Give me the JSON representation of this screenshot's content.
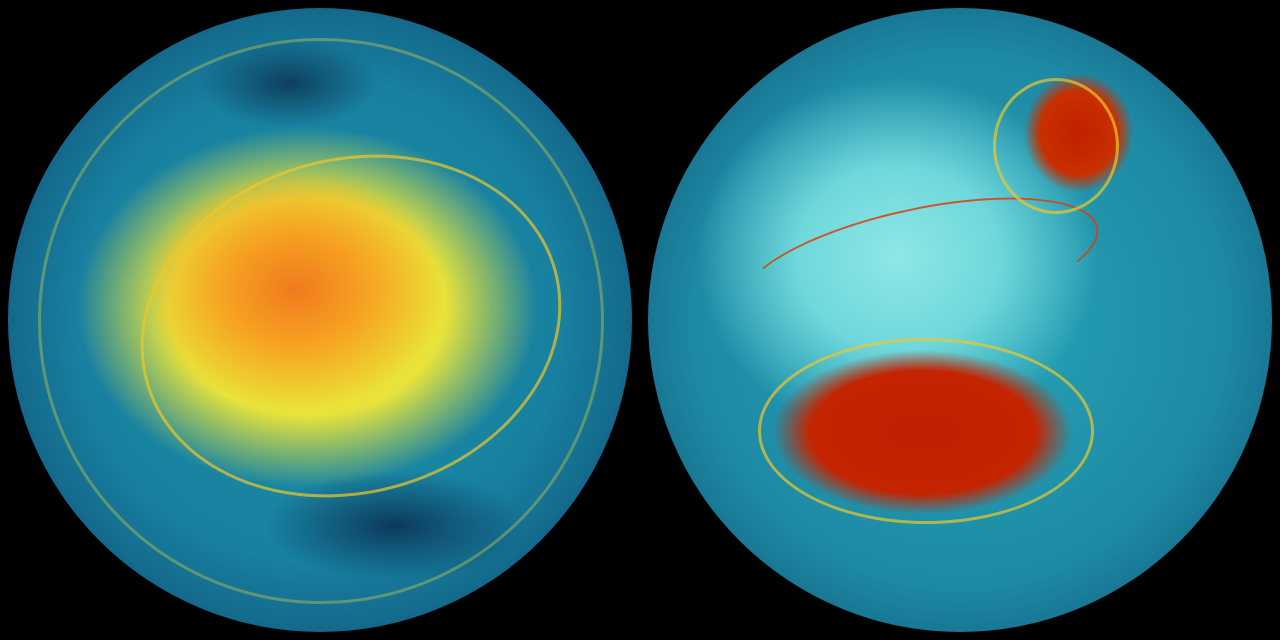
{
  "images": [
    {
      "name": "left-globe",
      "colors": {
        "vortex_core": "#f07a1e",
        "vortex_edge": "#f5d72a",
        "background_flow": "#1b93a8",
        "limb": "#082b45"
      }
    },
    {
      "name": "right-globe",
      "colors": {
        "vortex_core": "#c02000",
        "continents": "#8fe6e6",
        "background_flow": "#28a6b8",
        "limb": "#0a3150"
      }
    }
  ],
  "background": "#000000"
}
